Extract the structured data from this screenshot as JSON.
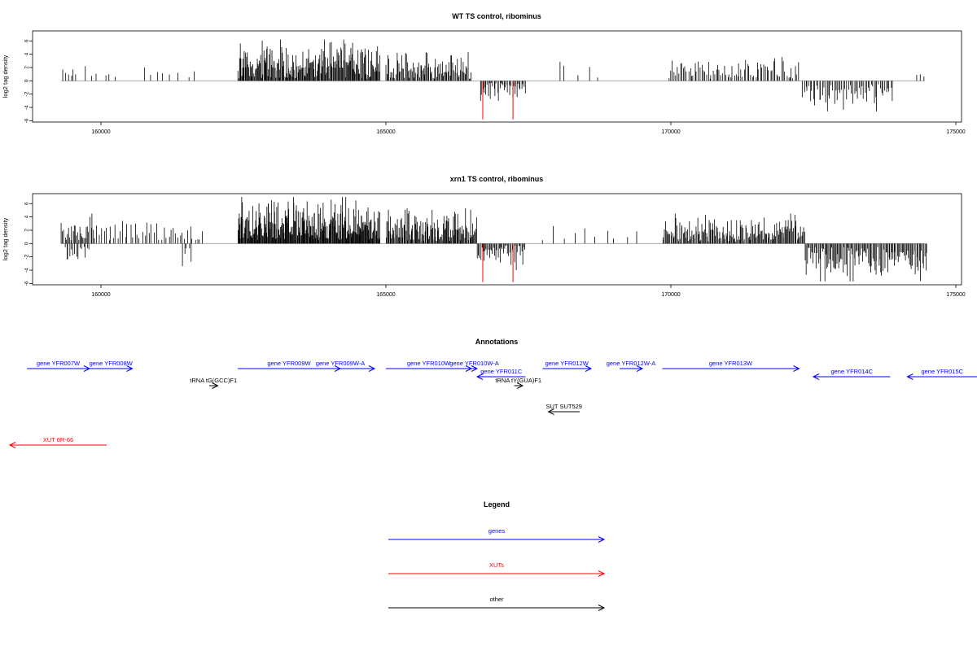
{
  "colors": {
    "gene": "#0000ff",
    "xut": "#ff0000",
    "other": "#000000",
    "highlight": "#ff0000",
    "baseline": "#aaaaaa"
  },
  "chart_data": [
    {
      "type": "bar",
      "title": "WT TS control, ribominus",
      "ylabel": "log2 tag density",
      "xlim": [
        158800,
        175100
      ],
      "ylim": [
        -6.2,
        7.5
      ],
      "xticks": [
        160000,
        165000,
        170000,
        175000
      ],
      "xtick_labels": [
        "160000",
        "165000",
        "170000",
        "175000"
      ],
      "yticks": [
        -6,
        -4,
        -2,
        0,
        2,
        4,
        6
      ],
      "ytick_labels": [
        "-6",
        "-4",
        "-2",
        "0",
        "2",
        "4",
        "6"
      ],
      "highlighted": [
        {
          "x": 166700,
          "y": -5.8
        },
        {
          "x": 167230,
          "y": -5.8
        }
      ],
      "regions": [
        {
          "start": 159300,
          "end": 159600,
          "n": 6,
          "min": 0.5,
          "max": 2.0,
          "sign": 1
        },
        {
          "start": 159700,
          "end": 160300,
          "n": 6,
          "min": 0.4,
          "max": 2.5,
          "sign": 1
        },
        {
          "start": 160700,
          "end": 161700,
          "n": 8,
          "min": 0.5,
          "max": 2.4,
          "sign": 1
        },
        {
          "start": 162400,
          "end": 164900,
          "n": 200,
          "min": 0.3,
          "max": 6.2,
          "sign": 1
        },
        {
          "start": 165000,
          "end": 166500,
          "n": 90,
          "min": 0.3,
          "max": 4.3,
          "sign": 1
        },
        {
          "start": 166650,
          "end": 167450,
          "n": 40,
          "min": 0.3,
          "max": 3.0,
          "sign": -1
        },
        {
          "start": 167950,
          "end": 168750,
          "n": 5,
          "min": 0.5,
          "max": 3.0,
          "sign": 1
        },
        {
          "start": 169950,
          "end": 172250,
          "n": 80,
          "min": 0.3,
          "max": 3.6,
          "sign": 1
        },
        {
          "start": 172300,
          "end": 173900,
          "n": 60,
          "min": 0.5,
          "max": 4.6,
          "sign": -1
        },
        {
          "start": 174300,
          "end": 174450,
          "n": 3,
          "min": 0.5,
          "max": 2.3,
          "sign": 1
        }
      ]
    },
    {
      "type": "bar",
      "title": "xrn1 TS control, ribominus",
      "ylabel": "log2 tag density",
      "xlim": [
        158800,
        175100
      ],
      "ylim": [
        -6.2,
        7.5
      ],
      "xticks": [
        160000,
        165000,
        170000,
        175000
      ],
      "xtick_labels": [
        "160000",
        "165000",
        "170000",
        "175000"
      ],
      "yticks": [
        -6,
        -4,
        -2,
        0,
        2,
        4,
        6
      ],
      "ytick_labels": [
        "-6",
        "-4",
        "-2",
        "0",
        "2",
        "4",
        "6"
      ],
      "highlighted": [
        {
          "x": 166700,
          "y": -5.8
        },
        {
          "x": 167230,
          "y": -5.8
        }
      ],
      "regions": [
        {
          "start": 159300,
          "end": 159900,
          "n": 30,
          "min": 0.5,
          "max": 4.5,
          "sign": 1
        },
        {
          "start": 159350,
          "end": 159800,
          "n": 15,
          "min": 0.5,
          "max": 3.0,
          "sign": -1
        },
        {
          "start": 159900,
          "end": 161800,
          "n": 45,
          "min": 0.5,
          "max": 3.4,
          "sign": 1
        },
        {
          "start": 161400,
          "end": 161600,
          "n": 5,
          "min": 0.5,
          "max": 3.4,
          "sign": -1
        },
        {
          "start": 162400,
          "end": 164900,
          "n": 260,
          "min": 0.5,
          "max": 7.0,
          "sign": 1
        },
        {
          "start": 165000,
          "end": 166600,
          "n": 120,
          "min": 0.3,
          "max": 5.3,
          "sign": 1
        },
        {
          "start": 166600,
          "end": 167450,
          "n": 45,
          "min": 0.3,
          "max": 4.0,
          "sign": -1
        },
        {
          "start": 167650,
          "end": 169500,
          "n": 10,
          "min": 0.3,
          "max": 2.9,
          "sign": 1
        },
        {
          "start": 169850,
          "end": 172350,
          "n": 160,
          "min": 0.3,
          "max": 4.5,
          "sign": 1
        },
        {
          "start": 172350,
          "end": 174500,
          "n": 120,
          "min": 0.5,
          "max": 5.7,
          "sign": -1
        }
      ]
    }
  ],
  "annotations": {
    "title": "Annotations",
    "features": [
      {
        "label": "gene YFR007W",
        "type": "gene",
        "start": 158700,
        "end": 159800,
        "strand": "+",
        "row": 0
      },
      {
        "label": "gene YFR008W",
        "type": "gene",
        "start": 159800,
        "end": 160550,
        "strand": "+",
        "row": 0
      },
      {
        "label": "gene YFR009W",
        "type": "gene",
        "start": 162400,
        "end": 164200,
        "strand": "+",
        "row": 0
      },
      {
        "label": "gene YFR009W-A",
        "type": "gene",
        "start": 163600,
        "end": 164800,
        "strand": "+",
        "row": 0
      },
      {
        "label": "gene YFR010W",
        "type": "gene",
        "start": 165000,
        "end": 166500,
        "strand": "+",
        "row": 0
      },
      {
        "label": "gene YFR010W-A",
        "type": "gene",
        "start": 166500,
        "end": 166600,
        "strand": "+",
        "row": 0
      },
      {
        "label": "gene YFR012W",
        "type": "gene",
        "start": 167750,
        "end": 168600,
        "strand": "+",
        "row": 0
      },
      {
        "label": "gene YFR012W-A",
        "type": "gene",
        "start": 169100,
        "end": 169500,
        "strand": "+",
        "row": 0
      },
      {
        "label": "gene YFR013W",
        "type": "gene",
        "start": 169850,
        "end": 172250,
        "strand": "+",
        "row": 0
      },
      {
        "label": "gene YFR011C",
        "type": "gene",
        "start": 166600,
        "end": 167450,
        "strand": "-",
        "row": 1
      },
      {
        "label": "gene YFR014C",
        "type": "gene",
        "start": 172500,
        "end": 173850,
        "strand": "-",
        "row": 1
      },
      {
        "label": "gene YFR015C",
        "type": "gene",
        "start": 174150,
        "end": 175500,
        "strand": "-",
        "row": 1
      },
      {
        "label": "tRNA tG(GCC)F1",
        "type": "other",
        "start": 161900,
        "end": 162050,
        "strand": "+",
        "row": 2
      },
      {
        "label": "tRNA tY(GUA)F1",
        "type": "other",
        "start": 167250,
        "end": 167400,
        "strand": "+",
        "row": 2
      },
      {
        "label": "SUT SUT529",
        "type": "other",
        "start": 167850,
        "end": 168400,
        "strand": "-",
        "row": 3
      },
      {
        "label": "XUT 6R-66",
        "type": "xut",
        "start": 158400,
        "end": 160100,
        "strand": "-",
        "row": 4
      }
    ]
  },
  "legend": {
    "title": "Legend",
    "items": [
      {
        "label": "genes",
        "type": "gene"
      },
      {
        "label": "XUTs",
        "type": "xut"
      },
      {
        "label": "other",
        "type": "other"
      }
    ]
  }
}
